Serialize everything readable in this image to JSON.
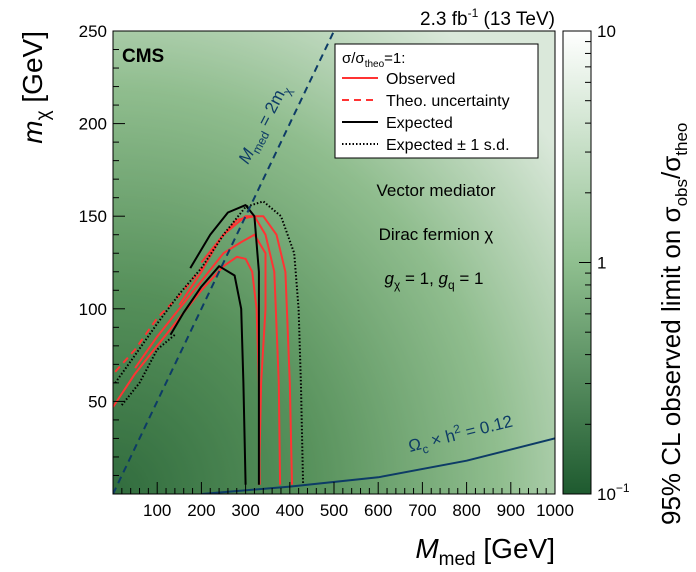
{
  "chart_data": {
    "type": "heatmap",
    "experiment": "CMS",
    "lumi_label": "2.3 fb",
    "lumi_sup": "-1",
    "energy_label": "(13 TeV)",
    "xlabel_main": "M",
    "xlabel_sub": "med",
    "xlabel_unit": "[GeV]",
    "ylabel_main": "m",
    "ylabel_sub": "χ",
    "ylabel_unit": "[GeV]",
    "zlabel": {
      "prefix": "95% CL observed limit on σ",
      "sub1": "obs",
      "mid": "/σ",
      "sub2": "theo"
    },
    "xlim": [
      0,
      1000
    ],
    "ylim": [
      0,
      250
    ],
    "zlim": [
      0.1,
      10
    ],
    "zscale": "log",
    "x_ticks": [
      100,
      200,
      300,
      400,
      500,
      600,
      700,
      800,
      900,
      1000
    ],
    "y_ticks": [
      50,
      100,
      150,
      200,
      250
    ],
    "z_ticks": [
      {
        "value": 10,
        "label": "10",
        "sup": ""
      },
      {
        "value": 1,
        "label": "1",
        "sup": ""
      },
      {
        "value": 0.1,
        "label": "10",
        "sup": "−1"
      }
    ],
    "colors": {
      "low": "#1e5a2f",
      "mid": "#8fbf8f",
      "high": "#ffffff",
      "observed": "#ff3333",
      "expected": "#000000",
      "diagonal": "#0d3b66",
      "relic": "#0d3b66"
    },
    "legend": {
      "title_main": "σ/σ",
      "title_sub": "theo",
      "title_tail": "=1:",
      "placement": "top-right",
      "entries": [
        {
          "label": "Observed",
          "style": "solid",
          "color": "#ff3333"
        },
        {
          "label": "Theo. uncertainty",
          "style": "dashed",
          "color": "#ff3333"
        },
        {
          "label": "Expected",
          "style": "solid",
          "color": "#000000"
        },
        {
          "label": "Expected ± 1 s.d.",
          "style": "dotted",
          "color": "#000000"
        }
      ]
    },
    "annotations": {
      "model_line1": "Vector mediator",
      "model_line2": "Dirac fermion χ",
      "coupling_g1": "g",
      "coupling_g1_sub": "χ",
      "coupling_mid": " = 1, ",
      "coupling_g2": "g",
      "coupling_g2_sub": "q",
      "coupling_tail": " = 1",
      "diag_main": "M",
      "diag_sub": "med",
      "diag_mid": " = 2m",
      "diag_sub2": "χ",
      "relic_main": "Ω",
      "relic_sub": "c",
      "relic_mid": " × h",
      "relic_sup": "2",
      "relic_tail": " = 0.12"
    },
    "series": [
      {
        "name": "Observed",
        "style": "solid",
        "color": "#ff3333",
        "points": [
          [
            0,
            47
          ],
          [
            50,
            65
          ],
          [
            100,
            80
          ],
          [
            150,
            95
          ],
          [
            200,
            110
          ],
          [
            250,
            123
          ],
          [
            280,
            128
          ],
          [
            300,
            127
          ],
          [
            315,
            120
          ],
          [
            325,
            100
          ],
          [
            330,
            60
          ],
          [
            332,
            5
          ]
        ]
      },
      {
        "name": "Observed",
        "style": "solid",
        "color": "#ff3333",
        "points": [
          [
            330,
            5
          ],
          [
            335,
            60
          ],
          [
            345,
            100
          ],
          [
            345,
            130
          ],
          [
            320,
            140
          ],
          [
            290,
            136
          ],
          [
            250,
            130
          ],
          [
            200,
            115
          ],
          [
            150,
            100
          ],
          [
            100,
            85
          ],
          [
            50,
            68
          ]
        ]
      },
      {
        "name": "Observed",
        "style": "solid",
        "color": "#ff3333",
        "points": [
          [
            150,
            102
          ],
          [
            200,
            120
          ],
          [
            240,
            137
          ],
          [
            280,
            148
          ],
          [
            320,
            150
          ],
          [
            345,
            140
          ],
          [
            365,
            120
          ],
          [
            375,
            60
          ],
          [
            378,
            5
          ]
        ]
      },
      {
        "name": "Observed",
        "style": "solid",
        "color": "#ff3333",
        "points": [
          [
            200,
            125
          ],
          [
            250,
            140
          ],
          [
            300,
            150
          ],
          [
            340,
            150
          ],
          [
            370,
            140
          ],
          [
            390,
            120
          ],
          [
            400,
            60
          ],
          [
            405,
            5
          ]
        ]
      },
      {
        "name": "Theo. uncertainty",
        "style": "dashed",
        "color": "#ff3333",
        "points": [
          [
            5,
            66
          ],
          [
            50,
            78
          ],
          [
            100,
            95
          ],
          [
            150,
            107
          ],
          [
            200,
            122
          ]
        ]
      },
      {
        "name": "Expected",
        "style": "solid",
        "color": "#000000",
        "points": [
          [
            130,
            86
          ],
          [
            160,
            98
          ],
          [
            200,
            112
          ],
          [
            240,
            123
          ],
          [
            275,
            118
          ],
          [
            290,
            100
          ],
          [
            295,
            60
          ],
          [
            300,
            5
          ]
        ]
      },
      {
        "name": "Expected",
        "style": "solid",
        "color": "#000000",
        "points": [
          [
            175,
            122
          ],
          [
            220,
            140
          ],
          [
            260,
            152
          ],
          [
            300,
            156
          ],
          [
            320,
            150
          ],
          [
            330,
            120
          ],
          [
            330,
            60
          ],
          [
            330,
            5
          ]
        ]
      },
      {
        "name": "Expected ± 1 s.d.",
        "style": "dotted",
        "color": "#000000",
        "points": [
          [
            5,
            60
          ],
          [
            50,
            75
          ],
          [
            100,
            92
          ],
          [
            150,
            108
          ],
          [
            200,
            122
          ],
          [
            250,
            140
          ],
          [
            300,
            155
          ],
          [
            340,
            158
          ],
          [
            380,
            150
          ],
          [
            410,
            130
          ],
          [
            420,
            100
          ],
          [
            425,
            60
          ],
          [
            430,
            5
          ]
        ]
      },
      {
        "name": "Expected ± 1 s.d.",
        "style": "dotted",
        "color": "#000000",
        "points": [
          [
            20,
            48
          ],
          [
            60,
            60
          ],
          [
            100,
            78
          ],
          [
            140,
            86
          ]
        ]
      },
      {
        "name": "Diagonal",
        "style": "dashed",
        "color": "#0d3b66",
        "points": [
          [
            0,
            0
          ],
          [
            500,
            250
          ]
        ]
      },
      {
        "name": "Relic",
        "style": "solid",
        "color": "#0d3b66",
        "points": [
          [
            200,
            0
          ],
          [
            400,
            4
          ],
          [
            600,
            9
          ],
          [
            800,
            18
          ],
          [
            1000,
            30
          ]
        ]
      }
    ]
  }
}
